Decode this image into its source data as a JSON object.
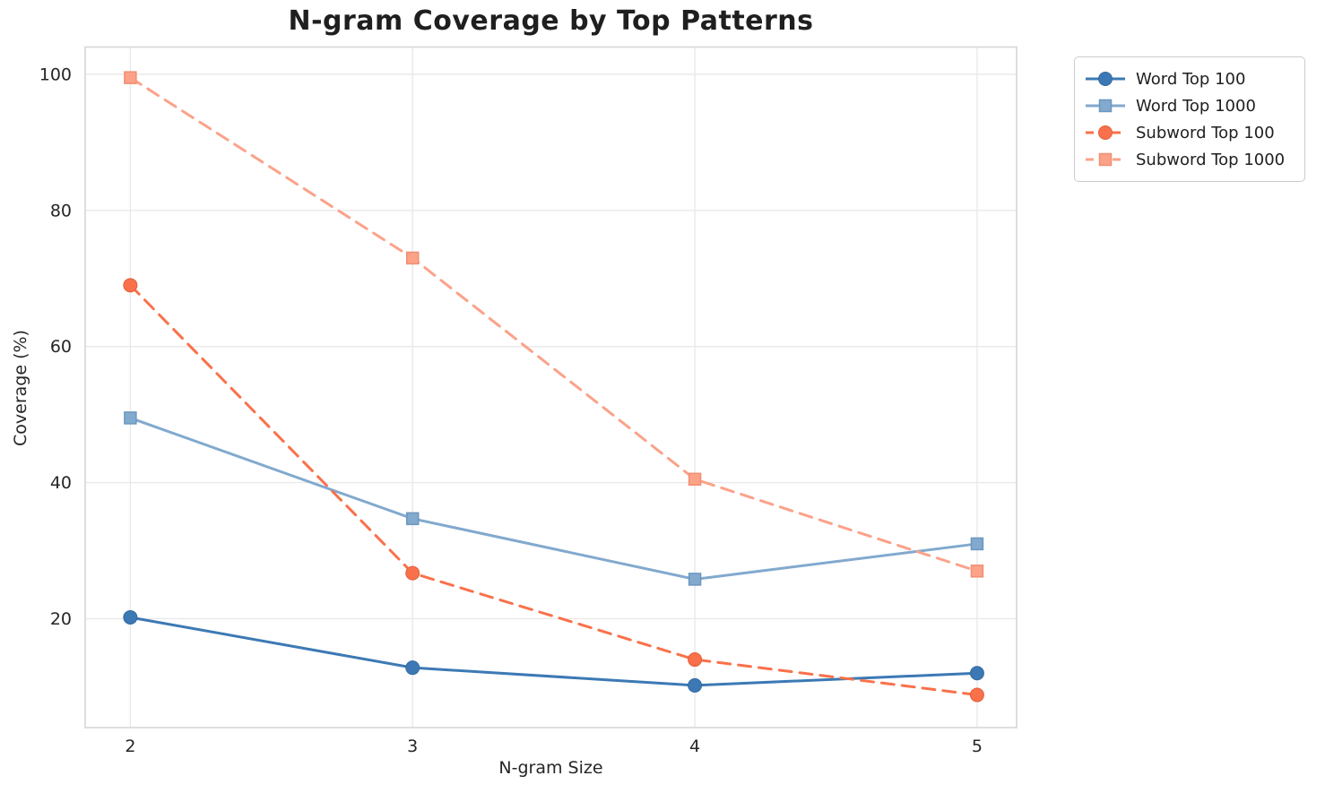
{
  "chart_data": {
    "type": "line",
    "title": "N-gram Coverage by Top Patterns",
    "xlabel": "N-gram Size",
    "ylabel": "Coverage (%)",
    "x": [
      2,
      3,
      4,
      5
    ],
    "xticks": [
      2,
      3,
      4,
      5
    ],
    "yticks": [
      20,
      40,
      60,
      80,
      100
    ],
    "xlim": [
      1.84,
      5.14
    ],
    "ylim": [
      4,
      104
    ],
    "grid": true,
    "legend_position": "outside-right",
    "series": [
      {
        "name": "Word Top 100",
        "values": [
          20.2,
          12.8,
          10.2,
          12.0
        ],
        "color": "#3c79b4",
        "edge": "#336aa0",
        "marker": "circle",
        "line": "solid"
      },
      {
        "name": "Word Top 1000",
        "values": [
          49.5,
          34.7,
          25.8,
          31.0
        ],
        "color": "#82a9ce",
        "edge": "#6d97bf",
        "marker": "square",
        "line": "solid"
      },
      {
        "name": "Subword Top 100",
        "values": [
          69.0,
          26.7,
          14.0,
          8.8
        ],
        "color": "#f9714a",
        "edge": "#e35f3b",
        "marker": "circle",
        "line": "dashed"
      },
      {
        "name": "Subword Top 1000",
        "values": [
          99.5,
          73.0,
          40.5,
          27.0
        ],
        "color": "#fba289",
        "edge": "#f08f72",
        "marker": "square",
        "line": "dashed"
      }
    ],
    "colors": {
      "grid": "#e9e9e9",
      "border": "#d6d6d6",
      "tick_text": "#262626"
    }
  }
}
